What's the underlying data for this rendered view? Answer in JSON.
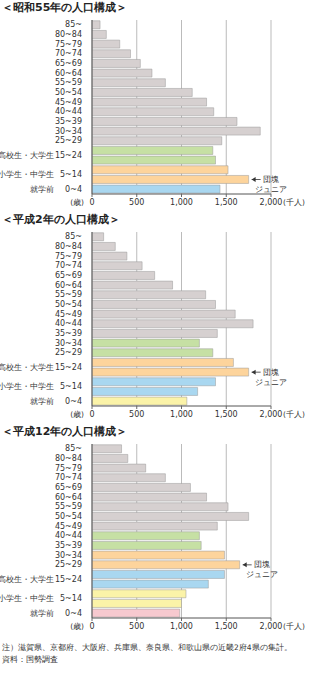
{
  "chart_data": [
    {
      "type": "bar",
      "orientation": "horizontal",
      "title": "＜昭和55年の人口構成＞",
      "categories": [
        "85~",
        "80~84",
        "75~79",
        "70~74",
        "65~69",
        "60~64",
        "55~59",
        "50~54",
        "45~49",
        "40~44",
        "35~39",
        "30~34",
        "25~29",
        "15~24",
        null,
        "5~14",
        null,
        "0~4"
      ],
      "values": [
        90,
        160,
        310,
        430,
        540,
        670,
        820,
        1120,
        1280,
        1360,
        1620,
        1880,
        1450,
        1350,
        1380,
        1520,
        1750,
        1430
      ],
      "colors": [
        "#d6d0d0",
        "#d6d0d0",
        "#d6d0d0",
        "#d6d0d0",
        "#d6d0d0",
        "#d6d0d0",
        "#d6d0d0",
        "#d6d0d0",
        "#d6d0d0",
        "#d6d0d0",
        "#d6d0d0",
        "#d6d0d0",
        "#d6d0d0",
        "#c6e0a4",
        "#c6e0a4",
        "#fdd49c",
        "#fdd49c",
        "#a9d7f0"
      ],
      "xlim": [
        0,
        2000
      ],
      "xticks": [
        0,
        500,
        {
          "value": 1000,
          "label": "1,000"
        },
        {
          "value": 1500,
          "label": "1,500"
        },
        {
          "value": 2000,
          "label": "2,000"
        }
      ],
      "x_label": "(千人)",
      "y_label": "(歳)",
      "grid": true,
      "group_labels": [
        {
          "text": "高校生・大学生",
          "index": 13
        },
        {
          "text": "小学生・中学生",
          "index": 15
        },
        {
          "text": "就学前",
          "index": 17
        }
      ],
      "annotations": [
        {
          "text": "団塊ジュニア",
          "index": 16
        }
      ]
    },
    {
      "type": "bar",
      "orientation": "horizontal",
      "title": "＜平成2年の人口構成＞",
      "categories": [
        "85~",
        "80~84",
        "75~79",
        "70~74",
        "65~69",
        "60~64",
        "55~59",
        "50~54",
        "45~49",
        "40~44",
        "35~39",
        "30~34",
        "25~29",
        "15~24",
        null,
        "5~14",
        null,
        "0~4"
      ],
      "values": [
        130,
        260,
        390,
        560,
        700,
        900,
        1270,
        1380,
        1600,
        1800,
        1400,
        1200,
        1350,
        1580,
        1750,
        1380,
        1180,
        1060
      ],
      "colors": [
        "#d6d0d0",
        "#d6d0d0",
        "#d6d0d0",
        "#d6d0d0",
        "#d6d0d0",
        "#d6d0d0",
        "#d6d0d0",
        "#d6d0d0",
        "#d6d0d0",
        "#d6d0d0",
        "#d6d0d0",
        "#c6e0a4",
        "#c6e0a4",
        "#fdd49c",
        "#fdd49c",
        "#a9d7f0",
        "#a9d7f0",
        "#fbf3a8"
      ],
      "xlim": [
        0,
        2000
      ],
      "xticks": [
        0,
        500,
        {
          "value": 1000,
          "label": "1,000"
        },
        {
          "value": 1500,
          "label": "1,500"
        },
        {
          "value": 2000,
          "label": "2,000"
        }
      ],
      "x_label": "(千人)",
      "y_label": "(歳)",
      "grid": true,
      "group_labels": [
        {
          "text": "高校生・大学生",
          "index": 13
        },
        {
          "text": "小学生・中学生",
          "index": 15
        },
        {
          "text": "就学前",
          "index": 17
        }
      ],
      "annotations": [
        {
          "text": "団塊ジュニア",
          "index": 14
        }
      ]
    },
    {
      "type": "bar",
      "orientation": "horizontal",
      "title": "＜平成12年の人口構成＞",
      "categories": [
        "85~",
        "80~84",
        "75~79",
        "70~74",
        "65~69",
        "60~64",
        "55~59",
        "50~54",
        "45~49",
        "40~44",
        "35~39",
        "30~34",
        "25~29",
        "15~24",
        null,
        "5~14",
        null,
        "0~4"
      ],
      "values": [
        330,
        400,
        600,
        820,
        1100,
        1280,
        1520,
        1750,
        1400,
        1200,
        1220,
        1480,
        1650,
        1480,
        1300,
        1050,
        1000,
        980
      ],
      "colors": [
        "#d6d0d0",
        "#d6d0d0",
        "#d6d0d0",
        "#d6d0d0",
        "#d6d0d0",
        "#d6d0d0",
        "#d6d0d0",
        "#d6d0d0",
        "#d6d0d0",
        "#c6e0a4",
        "#c6e0a4",
        "#fdd49c",
        "#fdd49c",
        "#a9d7f0",
        "#a9d7f0",
        "#fbf3a8",
        "#fbf3a8",
        "#f7c9cf"
      ],
      "xlim": [
        0,
        2000
      ],
      "xticks": [
        0,
        500,
        {
          "value": 1000,
          "label": "1,000"
        },
        {
          "value": 1500,
          "label": "1,500"
        },
        {
          "value": 2000,
          "label": "2,000"
        }
      ],
      "x_label": "(千人)",
      "y_label": "(歳)",
      "grid": true,
      "group_labels": [
        {
          "text": "高校生・大学生",
          "index": 13
        },
        {
          "text": "小学生・中学生",
          "index": 15
        },
        {
          "text": "就学前",
          "index": 17
        }
      ],
      "annotations": [
        {
          "text": "団塊ジュニア",
          "index": 12
        }
      ]
    }
  ],
  "note": "注）滋賀県、京都府、大阪府、兵庫県、奈良県、和歌山県の近畿2府4県の集計。",
  "source": "資料：国勢調査"
}
